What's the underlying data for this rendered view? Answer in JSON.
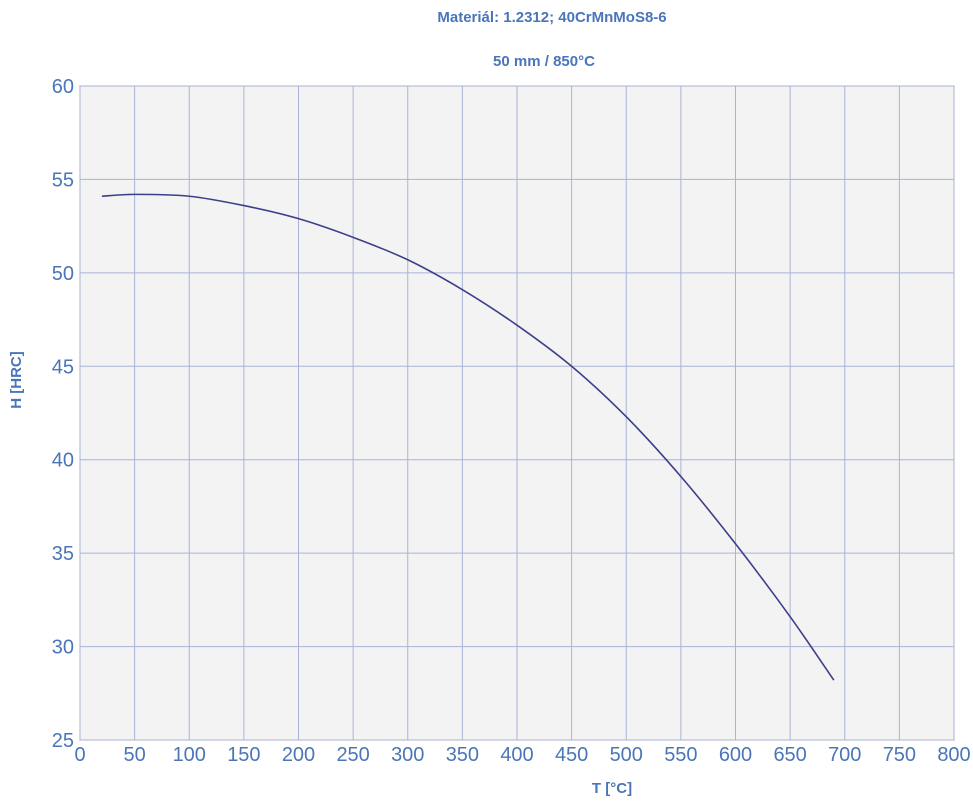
{
  "chart_data": {
    "type": "line",
    "title": "Materiál: 1.2312; 40CrMnMoS8-6",
    "subtitle": "50 mm / 850°C",
    "xlabel": "T [°C]",
    "ylabel": "H [HRC]",
    "xlim": [
      0,
      800
    ],
    "ylim": [
      25,
      60
    ],
    "xticks": [
      "0",
      "50",
      "100",
      "150",
      "200",
      "250",
      "300",
      "350",
      "400",
      "450",
      "500",
      "550",
      "600",
      "650",
      "700",
      "750",
      "800"
    ],
    "yticks": [
      "25",
      "30",
      "35",
      "40",
      "45",
      "50",
      "55",
      "60"
    ],
    "grid": true,
    "line_color": "#3c3f8a",
    "series": [
      {
        "x": [
          20,
          50,
          100,
          150,
          200,
          250,
          300,
          350,
          400,
          450,
          500,
          550,
          600,
          650,
          690
        ],
        "y": [
          54.1,
          54.2,
          54.1,
          53.6,
          52.9,
          51.9,
          50.7,
          49.1,
          47.2,
          45.0,
          42.3,
          39.1,
          35.5,
          31.6,
          28.2
        ]
      }
    ]
  }
}
